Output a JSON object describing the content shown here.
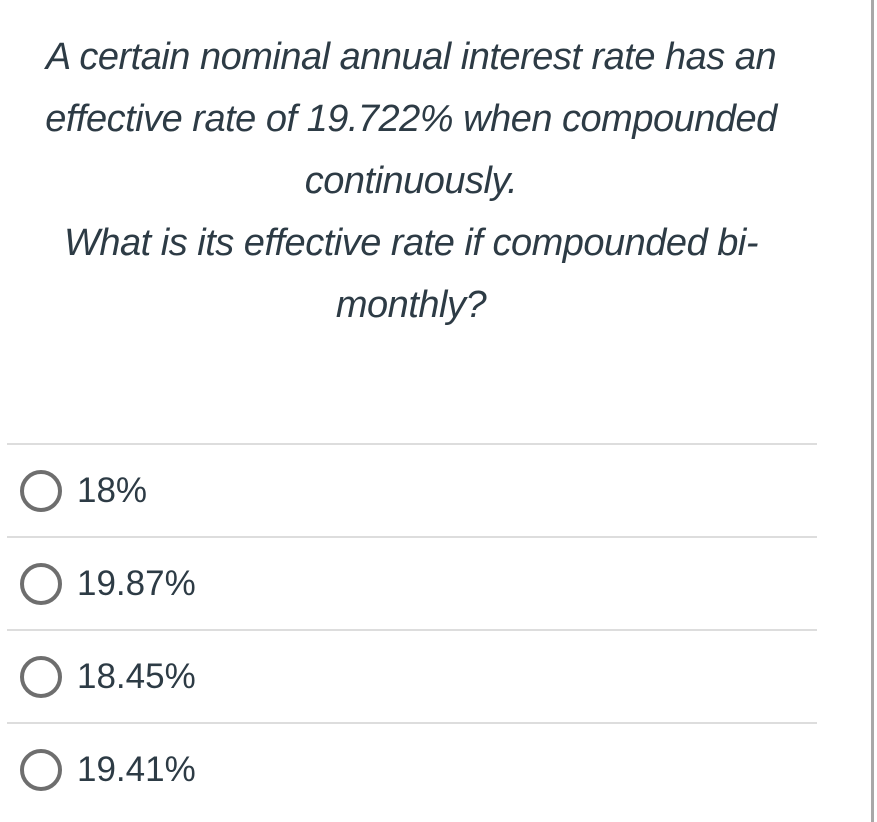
{
  "question": {
    "lines": [
      "A certain nominal annual interest rate has an",
      "effective rate of 19.722% when compounded",
      "continuously.",
      "What is its effective rate if compounded bi-",
      "monthly?"
    ]
  },
  "options": [
    {
      "label": "18%"
    },
    {
      "label": "19.87%"
    },
    {
      "label": "18.45%"
    },
    {
      "label": "19.41%"
    }
  ],
  "colors": {
    "text": "#2D3B45",
    "radio_border": "#6E6E6E",
    "divider": "#DDDDDD",
    "right_border": "#A8A8A8",
    "background": "#FFFFFF"
  }
}
